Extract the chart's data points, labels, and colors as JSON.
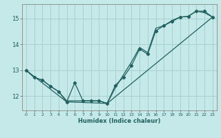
{
  "xlabel": "Humidex (Indice chaleur)",
  "background_color": "#c5e8e8",
  "grid_color": "#a8d0d0",
  "line_color": "#206060",
  "xlim": [
    -0.5,
    23.5
  ],
  "ylim": [
    11.45,
    15.55
  ],
  "yticks": [
    12,
    13,
    14,
    15
  ],
  "xticks": [
    0,
    1,
    2,
    3,
    4,
    5,
    6,
    7,
    8,
    9,
    10,
    11,
    12,
    13,
    14,
    15,
    16,
    17,
    18,
    19,
    20,
    21,
    22,
    23
  ],
  "line1_x": [
    0,
    1,
    2,
    3,
    4,
    5,
    6,
    7,
    8,
    9,
    10,
    11,
    12,
    13,
    14,
    15,
    16,
    17,
    18,
    19,
    20,
    21,
    22,
    23
  ],
  "line1_y": [
    13.0,
    12.72,
    12.62,
    12.38,
    12.18,
    11.78,
    12.52,
    11.82,
    11.82,
    11.82,
    11.72,
    12.42,
    12.72,
    13.18,
    13.82,
    13.62,
    14.52,
    14.72,
    14.88,
    15.05,
    15.08,
    15.28,
    15.28,
    15.05
  ],
  "line2_x": [
    0,
    5,
    10,
    23
  ],
  "line2_y": [
    13.0,
    11.78,
    11.72,
    15.05
  ],
  "line3_x": [
    0,
    1,
    2,
    3,
    4,
    5,
    6,
    7,
    8,
    9,
    10,
    11,
    12,
    13,
    14,
    15,
    16,
    17,
    18,
    19,
    20,
    21,
    22,
    23
  ],
  "line3_y": [
    13.0,
    12.72,
    12.62,
    12.38,
    12.18,
    11.82,
    11.82,
    11.82,
    11.82,
    11.82,
    11.72,
    12.32,
    12.82,
    13.32,
    13.88,
    13.68,
    14.62,
    14.72,
    14.92,
    15.05,
    15.08,
    15.28,
    15.22,
    15.05
  ]
}
